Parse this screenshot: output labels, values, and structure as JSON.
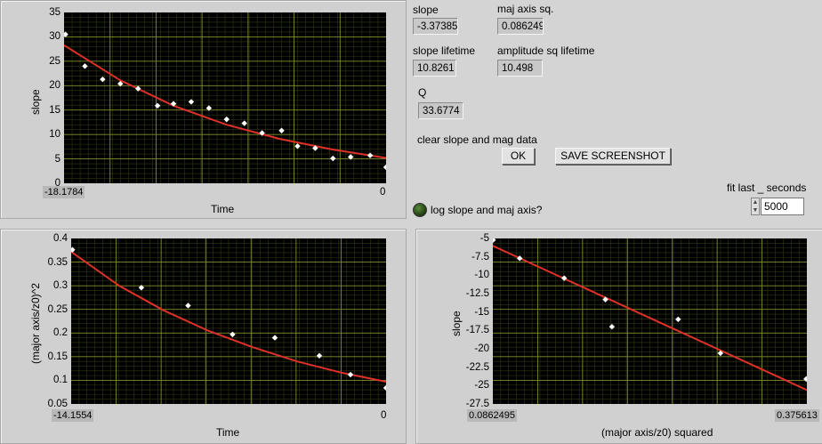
{
  "graph_top": {
    "y_label": "slope",
    "x_label": "Time",
    "x_min_label": "-18.1784",
    "x_max_label": "0",
    "y_ticks": [
      "35",
      "30",
      "25",
      "20",
      "15",
      "10",
      "5",
      "0"
    ]
  },
  "graph_bl": {
    "y_label": "(major axis/z0)^2",
    "x_label": "Time",
    "x_min_label": "-14.1554",
    "x_max_label": "0",
    "y_ticks": [
      "0.4",
      "0.35",
      "0.3",
      "0.25",
      "0.2",
      "0.15",
      "0.1",
      "0.05"
    ]
  },
  "graph_br": {
    "y_label": "slope",
    "x_label": "(major axis/z0) squared",
    "x_min_label": "0.0862495",
    "x_max_label": "0.375613",
    "y_ticks": [
      "-5",
      "-7.5",
      "-10",
      "-12.5",
      "-15",
      "-17.5",
      "-20",
      "-22.5",
      "-25",
      "-27.5"
    ]
  },
  "indicators": {
    "slope": {
      "label": "slope",
      "value": "-3.37385"
    },
    "maj_axis_sq": {
      "label": "maj axis sq.",
      "value": "0.086249"
    },
    "slope_lifetime": {
      "label": "slope lifetime",
      "value": "10.8261"
    },
    "amp_sq_lifetime": {
      "label": "amplitude sq lifetime",
      "value": "10.498"
    },
    "q": {
      "label": "Q",
      "value": "33.6774"
    }
  },
  "controls": {
    "clear_label": "clear slope and mag data",
    "ok_button": "OK",
    "save_button": "SAVE SCREENSHOT",
    "log_label": "log slope and maj axis?",
    "fit_label": "fit last _ seconds",
    "fit_value": "5000"
  },
  "colors": {
    "plot_bg": "#000000",
    "grid": "#7f8c2e",
    "fit_line": "#e0302a",
    "points": "#ffffff"
  },
  "chart_data": [
    {
      "type": "scatter",
      "title": "",
      "xlabel": "Time",
      "ylabel": "slope",
      "xlim": [
        -18.1784,
        0
      ],
      "ylim": [
        0,
        35
      ],
      "series": [
        {
          "points": [
            [
              -18.1,
              30.5
            ],
            [
              -17.0,
              24.0
            ],
            [
              -16.0,
              21.3
            ],
            [
              -15.0,
              20.4
            ],
            [
              -14.0,
              19.4
            ],
            [
              -12.9,
              15.9
            ],
            [
              -12.0,
              16.3
            ],
            [
              -11.0,
              16.7
            ],
            [
              -10.0,
              15.4
            ],
            [
              -9.0,
              13.1
            ],
            [
              -8.0,
              12.3
            ],
            [
              -7.0,
              10.3
            ],
            [
              -5.9,
              10.8
            ],
            [
              -5.0,
              7.6
            ],
            [
              -4.0,
              7.2
            ],
            [
              -3.0,
              5.1
            ],
            [
              -2.0,
              5.4
            ],
            [
              -0.9,
              5.7
            ],
            [
              0,
              3.3
            ]
          ]
        },
        {
          "fit": "exponential",
          "x": [
            -18.1784,
            -15,
            -12,
            -9,
            -6,
            -3,
            0
          ],
          "y": [
            28.3,
            21.1,
            15.9,
            12.0,
            9.1,
            6.9,
            5.2
          ]
        }
      ]
    },
    {
      "type": "scatter",
      "title": "",
      "xlabel": "Time",
      "ylabel": "(major axis/z0)^2",
      "xlim": [
        -14.1554,
        0
      ],
      "ylim": [
        0.05,
        0.4
      ],
      "series": [
        {
          "points": [
            [
              -14.1,
              0.376
            ],
            [
              -11.0,
              0.296
            ],
            [
              -8.9,
              0.258
            ],
            [
              -6.9,
              0.197
            ],
            [
              -5.0,
              0.19
            ],
            [
              -3.0,
              0.152
            ],
            [
              -1.6,
              0.112
            ],
            [
              0,
              0.084
            ]
          ]
        },
        {
          "fit": "exponential",
          "x": [
            -14.1554,
            -12,
            -10,
            -8,
            -6,
            -4,
            -2,
            0
          ],
          "y": [
            0.372,
            0.3,
            0.248,
            0.205,
            0.17,
            0.14,
            0.116,
            0.097
          ]
        }
      ]
    },
    {
      "type": "scatter",
      "title": "",
      "xlabel": "(major axis/z0) squared",
      "ylabel": "slope",
      "xlim": [
        0.0862495,
        0.375613
      ],
      "ylim": [
        -27.5,
        -5
      ],
      "series": [
        {
          "points": [
            [
              0.0865,
              -5.2
            ],
            [
              0.111,
              -7.7
            ],
            [
              0.152,
              -10.4
            ],
            [
              0.19,
              -13.3
            ],
            [
              0.196,
              -17.0
            ],
            [
              0.257,
              -16.0
            ],
            [
              0.296,
              -20.6
            ],
            [
              0.375,
              -24.1
            ]
          ]
        },
        {
          "fit": "linear",
          "x": [
            0.0862495,
            0.375613
          ],
          "y": [
            -6.0,
            -25.6
          ]
        }
      ]
    }
  ]
}
